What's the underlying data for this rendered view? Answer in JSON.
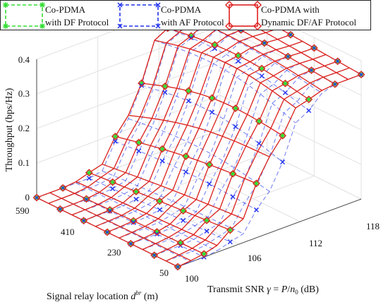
{
  "chart_data": {
    "type": "surface",
    "title": "",
    "xlabel": "Signal relay location d^{br} (m)",
    "ylabel": "Transmit SNR γ = P/n_0 (dB)",
    "zlabel": "Throughput (bps/Hz)",
    "x_ticks": [
      "50",
      "230",
      "410",
      "590"
    ],
    "y_ticks": [
      "100",
      "106",
      "112",
      "118"
    ],
    "z_ticks": [
      "0",
      "0.1",
      "0.2",
      "0.3",
      "0.4"
    ],
    "xlim": [
      50,
      590
    ],
    "ylim": [
      100,
      118
    ],
    "zlim": [
      0,
      0.4
    ],
    "grid": true,
    "legend_position": "top",
    "series": [
      {
        "name": "Co-PDMA with DF Protocol",
        "legend_line1": "Co-PDMA",
        "legend_line2": "with DF Protocol",
        "color": "#33dd33",
        "marker": "asterisk",
        "line_style": "dashed",
        "values": [
          {
            "snr": 100,
            "near": 0.0,
            "far": 0.0
          },
          {
            "snr": 103,
            "near": 0.01,
            "far": 0.0
          },
          {
            "snr": 106,
            "near": 0.06,
            "far": 0.02
          },
          {
            "snr": 109,
            "near": 0.22,
            "far": 0.14
          },
          {
            "snr": 112,
            "near": 0.34,
            "far": 0.34
          },
          {
            "snr": 115,
            "near": 0.36,
            "far": 0.39
          },
          {
            "snr": 118,
            "near": 0.36,
            "far": 0.39
          }
        ]
      },
      {
        "name": "Co-PDMA with AF Protocol",
        "legend_line1": "Co-PDMA",
        "legend_line2": "with AF Protocol",
        "color": "#2233ee",
        "marker": "x",
        "line_style": "dashed",
        "values": [
          {
            "snr": 100,
            "near": 0.0,
            "far": 0.0
          },
          {
            "snr": 103,
            "near": 0.0,
            "far": 0.0
          },
          {
            "snr": 106,
            "near": 0.02,
            "far": 0.0
          },
          {
            "snr": 109,
            "near": 0.12,
            "far": 0.13
          },
          {
            "snr": 112,
            "near": 0.3,
            "far": 0.34
          },
          {
            "snr": 115,
            "near": 0.36,
            "far": 0.39
          },
          {
            "snr": 118,
            "near": 0.36,
            "far": 0.39
          }
        ]
      },
      {
        "name": "Co-PDMA with Dynamic DF/AF Protocol",
        "legend_line1": "Co-PDMA with",
        "legend_line2": "Dynamic DF/AF Protocol",
        "color": "#e02020",
        "marker": "diamond",
        "line_style": "solid",
        "values": [
          {
            "snr": 100,
            "near": 0.0,
            "far": 0.0
          },
          {
            "snr": 103,
            "near": 0.01,
            "far": 0.0
          },
          {
            "snr": 106,
            "near": 0.06,
            "far": 0.02
          },
          {
            "snr": 109,
            "near": 0.22,
            "far": 0.14
          },
          {
            "snr": 112,
            "near": 0.34,
            "far": 0.34
          },
          {
            "snr": 115,
            "near": 0.36,
            "far": 0.39
          },
          {
            "snr": 118,
            "near": 0.36,
            "far": 0.39
          }
        ]
      }
    ]
  }
}
